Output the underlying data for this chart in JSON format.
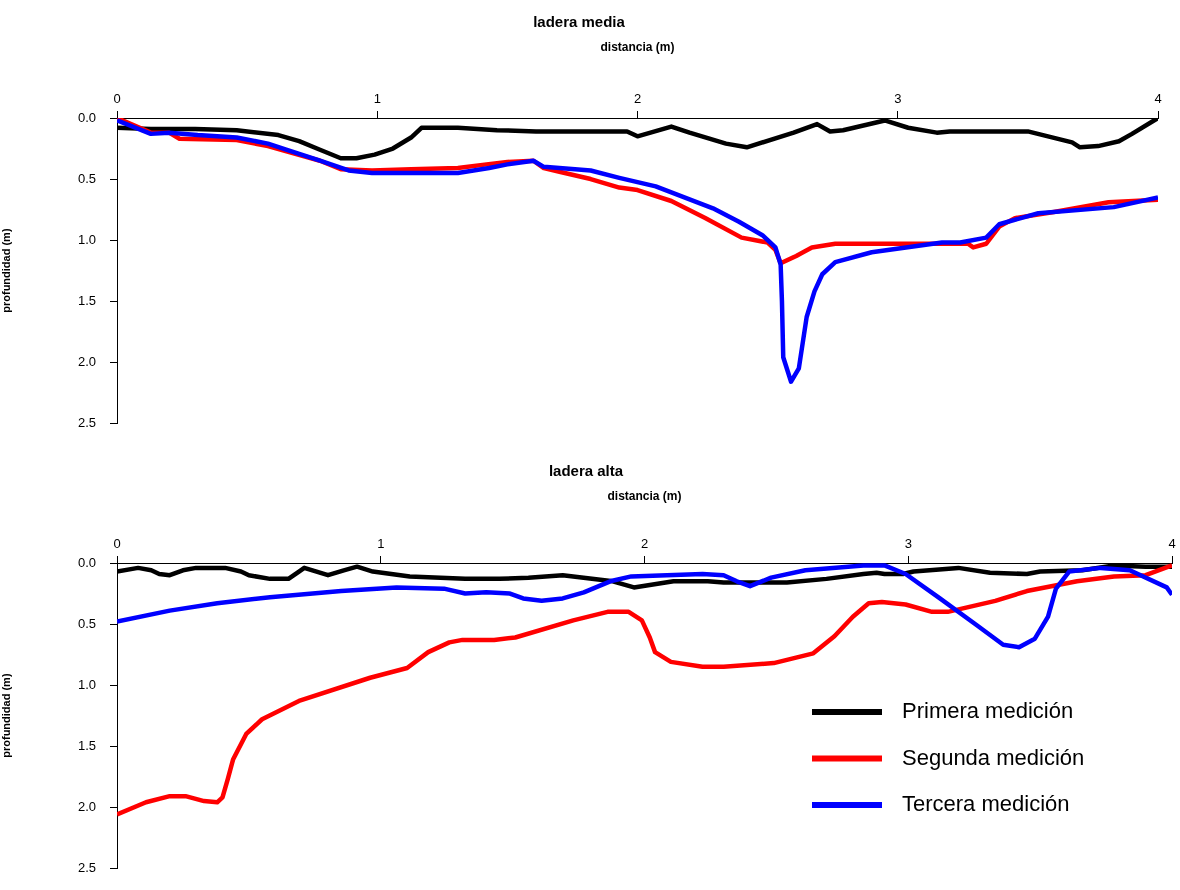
{
  "chart_data": [
    {
      "type": "line",
      "title": "ladera media",
      "xlabel": "distancia (m)",
      "ylabel": "profundidad (m)",
      "xlim": [
        0,
        4
      ],
      "xticks": [
        0,
        1,
        2,
        3,
        4
      ],
      "ylim": [
        2.5,
        0
      ],
      "yticks": [
        {
          "value": 0,
          "label": "0.0"
        },
        {
          "value": 0.5,
          "label": "0.5"
        },
        {
          "value": 1,
          "label": "1.0"
        },
        {
          "value": 1.5,
          "label": "1.5"
        },
        {
          "value": 2,
          "label": "2.0"
        },
        {
          "value": 2.5,
          "label": "2.5"
        }
      ],
      "legend": false,
      "series": [
        {
          "color": "#000000",
          "x": [
            0,
            0.13,
            0.3,
            0.46,
            0.62,
            0.7,
            0.78,
            0.86,
            0.92,
            0.99,
            1.06,
            1.13,
            1.17,
            1.31,
            1.46,
            1.61,
            1.96,
            2.0,
            2.13,
            2.2,
            2.34,
            2.42,
            2.6,
            2.69,
            2.74,
            2.79,
            2.95,
            3.04,
            3.15,
            3.2,
            3.5,
            3.67,
            3.7,
            3.77,
            3.85,
            3.9,
            4.0
          ],
          "values": [
            0.08,
            0.09,
            0.09,
            0.1,
            0.14,
            0.19,
            0.26,
            0.33,
            0.33,
            0.3,
            0.25,
            0.16,
            0.08,
            0.08,
            0.1,
            0.11,
            0.11,
            0.15,
            0.07,
            0.12,
            0.21,
            0.24,
            0.12,
            0.05,
            0.11,
            0.1,
            0.02,
            0.08,
            0.12,
            0.11,
            0.11,
            0.2,
            0.24,
            0.23,
            0.19,
            0.13,
            0.0
          ]
        },
        {
          "color": "#ff0000",
          "x": [
            0,
            0.13,
            0.2,
            0.24,
            0.46,
            0.58,
            0.78,
            0.86,
            0.98,
            1.13,
            1.31,
            1.42,
            1.5,
            1.6,
            1.64,
            1.7,
            1.82,
            1.93,
            2.0,
            2.13,
            2.26,
            2.4,
            2.5,
            2.53,
            2.55,
            2.61,
            2.67,
            2.76,
            3.0,
            3.27,
            3.29,
            3.34,
            3.39,
            3.45,
            3.6,
            3.81,
            4.0
          ],
          "values": [
            0,
            0.12,
            0.12,
            0.17,
            0.18,
            0.23,
            0.35,
            0.42,
            0.43,
            0.42,
            0.41,
            0.38,
            0.36,
            0.35,
            0.41,
            0.44,
            0.5,
            0.57,
            0.59,
            0.68,
            0.82,
            0.98,
            1.02,
            1.08,
            1.19,
            1.13,
            1.06,
            1.03,
            1.03,
            1.03,
            1.06,
            1.03,
            0.89,
            0.82,
            0.77,
            0.69,
            0.67
          ]
        },
        {
          "color": "#0000ff",
          "x": [
            0,
            0.13,
            0.2,
            0.31,
            0.46,
            0.58,
            0.65,
            0.78,
            0.89,
            0.98,
            1.31,
            1.43,
            1.5,
            1.6,
            1.64,
            1.7,
            1.82,
            1.93,
            2.07,
            2.29,
            2.39,
            2.48,
            2.53,
            2.55,
            2.555,
            2.56,
            2.59,
            2.62,
            2.65,
            2.68,
            2.71,
            2.76,
            2.9,
            3.17,
            3.24,
            3.34,
            3.39,
            3.54,
            3.83,
            4.0
          ],
          "values": [
            0.02,
            0.13,
            0.12,
            0.14,
            0.16,
            0.21,
            0.26,
            0.35,
            0.43,
            0.45,
            0.45,
            0.41,
            0.38,
            0.35,
            0.4,
            0.41,
            0.43,
            0.49,
            0.56,
            0.74,
            0.85,
            0.96,
            1.06,
            1.2,
            1.5,
            1.96,
            2.16,
            2.05,
            1.63,
            1.42,
            1.28,
            1.18,
            1.1,
            1.02,
            1.02,
            0.98,
            0.87,
            0.78,
            0.73,
            0.65
          ]
        }
      ]
    },
    {
      "type": "line",
      "title": "ladera alta",
      "xlabel": "distancia (m)",
      "ylabel": "profundidad (m)",
      "xlim": [
        0,
        4
      ],
      "xticks": [
        0,
        1,
        2,
        3,
        4
      ],
      "ylim": [
        2.5,
        0
      ],
      "yticks": [
        {
          "value": 0,
          "label": "0.0"
        },
        {
          "value": 0.5,
          "label": "0.5"
        },
        {
          "value": 1,
          "label": "1.0"
        },
        {
          "value": 1.5,
          "label": "1.5"
        },
        {
          "value": 2,
          "label": "2.0"
        },
        {
          "value": 2.5,
          "label": "2.5"
        }
      ],
      "legend": "bottom right",
      "series": [
        {
          "name": "Primera medición",
          "color": "#000000",
          "x": [
            0,
            0.08,
            0.13,
            0.16,
            0.2,
            0.25,
            0.3,
            0.41,
            0.47,
            0.5,
            0.58,
            0.65,
            0.69,
            0.71,
            0.8,
            0.86,
            0.91,
            0.97,
            1.11,
            1.32,
            1.45,
            1.56,
            1.69,
            1.88,
            1.96,
            2.11,
            2.24,
            2.3,
            2.54,
            2.69,
            2.83,
            2.88,
            2.91,
            2.98,
            3.02,
            3.19,
            3.31,
            3.45,
            3.5,
            3.66,
            3.78,
            3.9,
            4.0
          ],
          "values": [
            0.07,
            0.04,
            0.06,
            0.09,
            0.1,
            0.06,
            0.04,
            0.04,
            0.07,
            0.1,
            0.13,
            0.13,
            0.07,
            0.04,
            0.1,
            0.06,
            0.03,
            0.07,
            0.11,
            0.13,
            0.13,
            0.12,
            0.1,
            0.15,
            0.2,
            0.15,
            0.15,
            0.16,
            0.16,
            0.13,
            0.09,
            0.08,
            0.09,
            0.09,
            0.07,
            0.04,
            0.08,
            0.09,
            0.07,
            0.06,
            0.02,
            0.03,
            0.03
          ]
        },
        {
          "name": "Segunda medición",
          "color": "#ff0000",
          "x": [
            0,
            0.11,
            0.2,
            0.26,
            0.33,
            0.38,
            0.4,
            0.42,
            0.44,
            0.49,
            0.55,
            0.69,
            0.96,
            1.1,
            1.18,
            1.26,
            1.31,
            1.43,
            1.51,
            1.73,
            1.86,
            1.94,
            1.99,
            2.02,
            2.04,
            2.1,
            2.22,
            2.3,
            2.49,
            2.64,
            2.72,
            2.79,
            2.85,
            2.9,
            2.99,
            3.09,
            3.15,
            3.33,
            3.45,
            3.64,
            3.78,
            3.9,
            4.0
          ],
          "values": [
            2.06,
            1.96,
            1.91,
            1.91,
            1.95,
            1.96,
            1.92,
            1.77,
            1.61,
            1.4,
            1.28,
            1.13,
            0.94,
            0.86,
            0.73,
            0.65,
            0.63,
            0.63,
            0.61,
            0.47,
            0.4,
            0.4,
            0.47,
            0.61,
            0.73,
            0.81,
            0.85,
            0.85,
            0.82,
            0.74,
            0.6,
            0.44,
            0.33,
            0.32,
            0.34,
            0.4,
            0.4,
            0.31,
            0.23,
            0.15,
            0.11,
            0.1,
            0.02
          ]
        },
        {
          "name": "Tercera medición",
          "color": "#0000ff",
          "x": [
            0,
            0.2,
            0.38,
            0.58,
            0.85,
            1.06,
            1.24,
            1.32,
            1.4,
            1.49,
            1.54,
            1.61,
            1.69,
            1.77,
            1.87,
            1.95,
            2.22,
            2.3,
            2.35,
            2.4,
            2.48,
            2.61,
            2.83,
            2.91,
            2.99,
            3.12,
            3.26,
            3.36,
            3.42,
            3.48,
            3.53,
            3.56,
            3.61,
            3.73,
            3.84,
            3.98,
            4.0
          ],
          "values": [
            0.48,
            0.39,
            0.33,
            0.28,
            0.23,
            0.2,
            0.21,
            0.25,
            0.24,
            0.25,
            0.29,
            0.31,
            0.29,
            0.24,
            0.15,
            0.11,
            0.09,
            0.1,
            0.15,
            0.19,
            0.12,
            0.06,
            0.02,
            0.02,
            0.09,
            0.29,
            0.51,
            0.67,
            0.69,
            0.62,
            0.44,
            0.21,
            0.07,
            0.04,
            0.06,
            0.2,
            0.26
          ]
        }
      ]
    }
  ]
}
